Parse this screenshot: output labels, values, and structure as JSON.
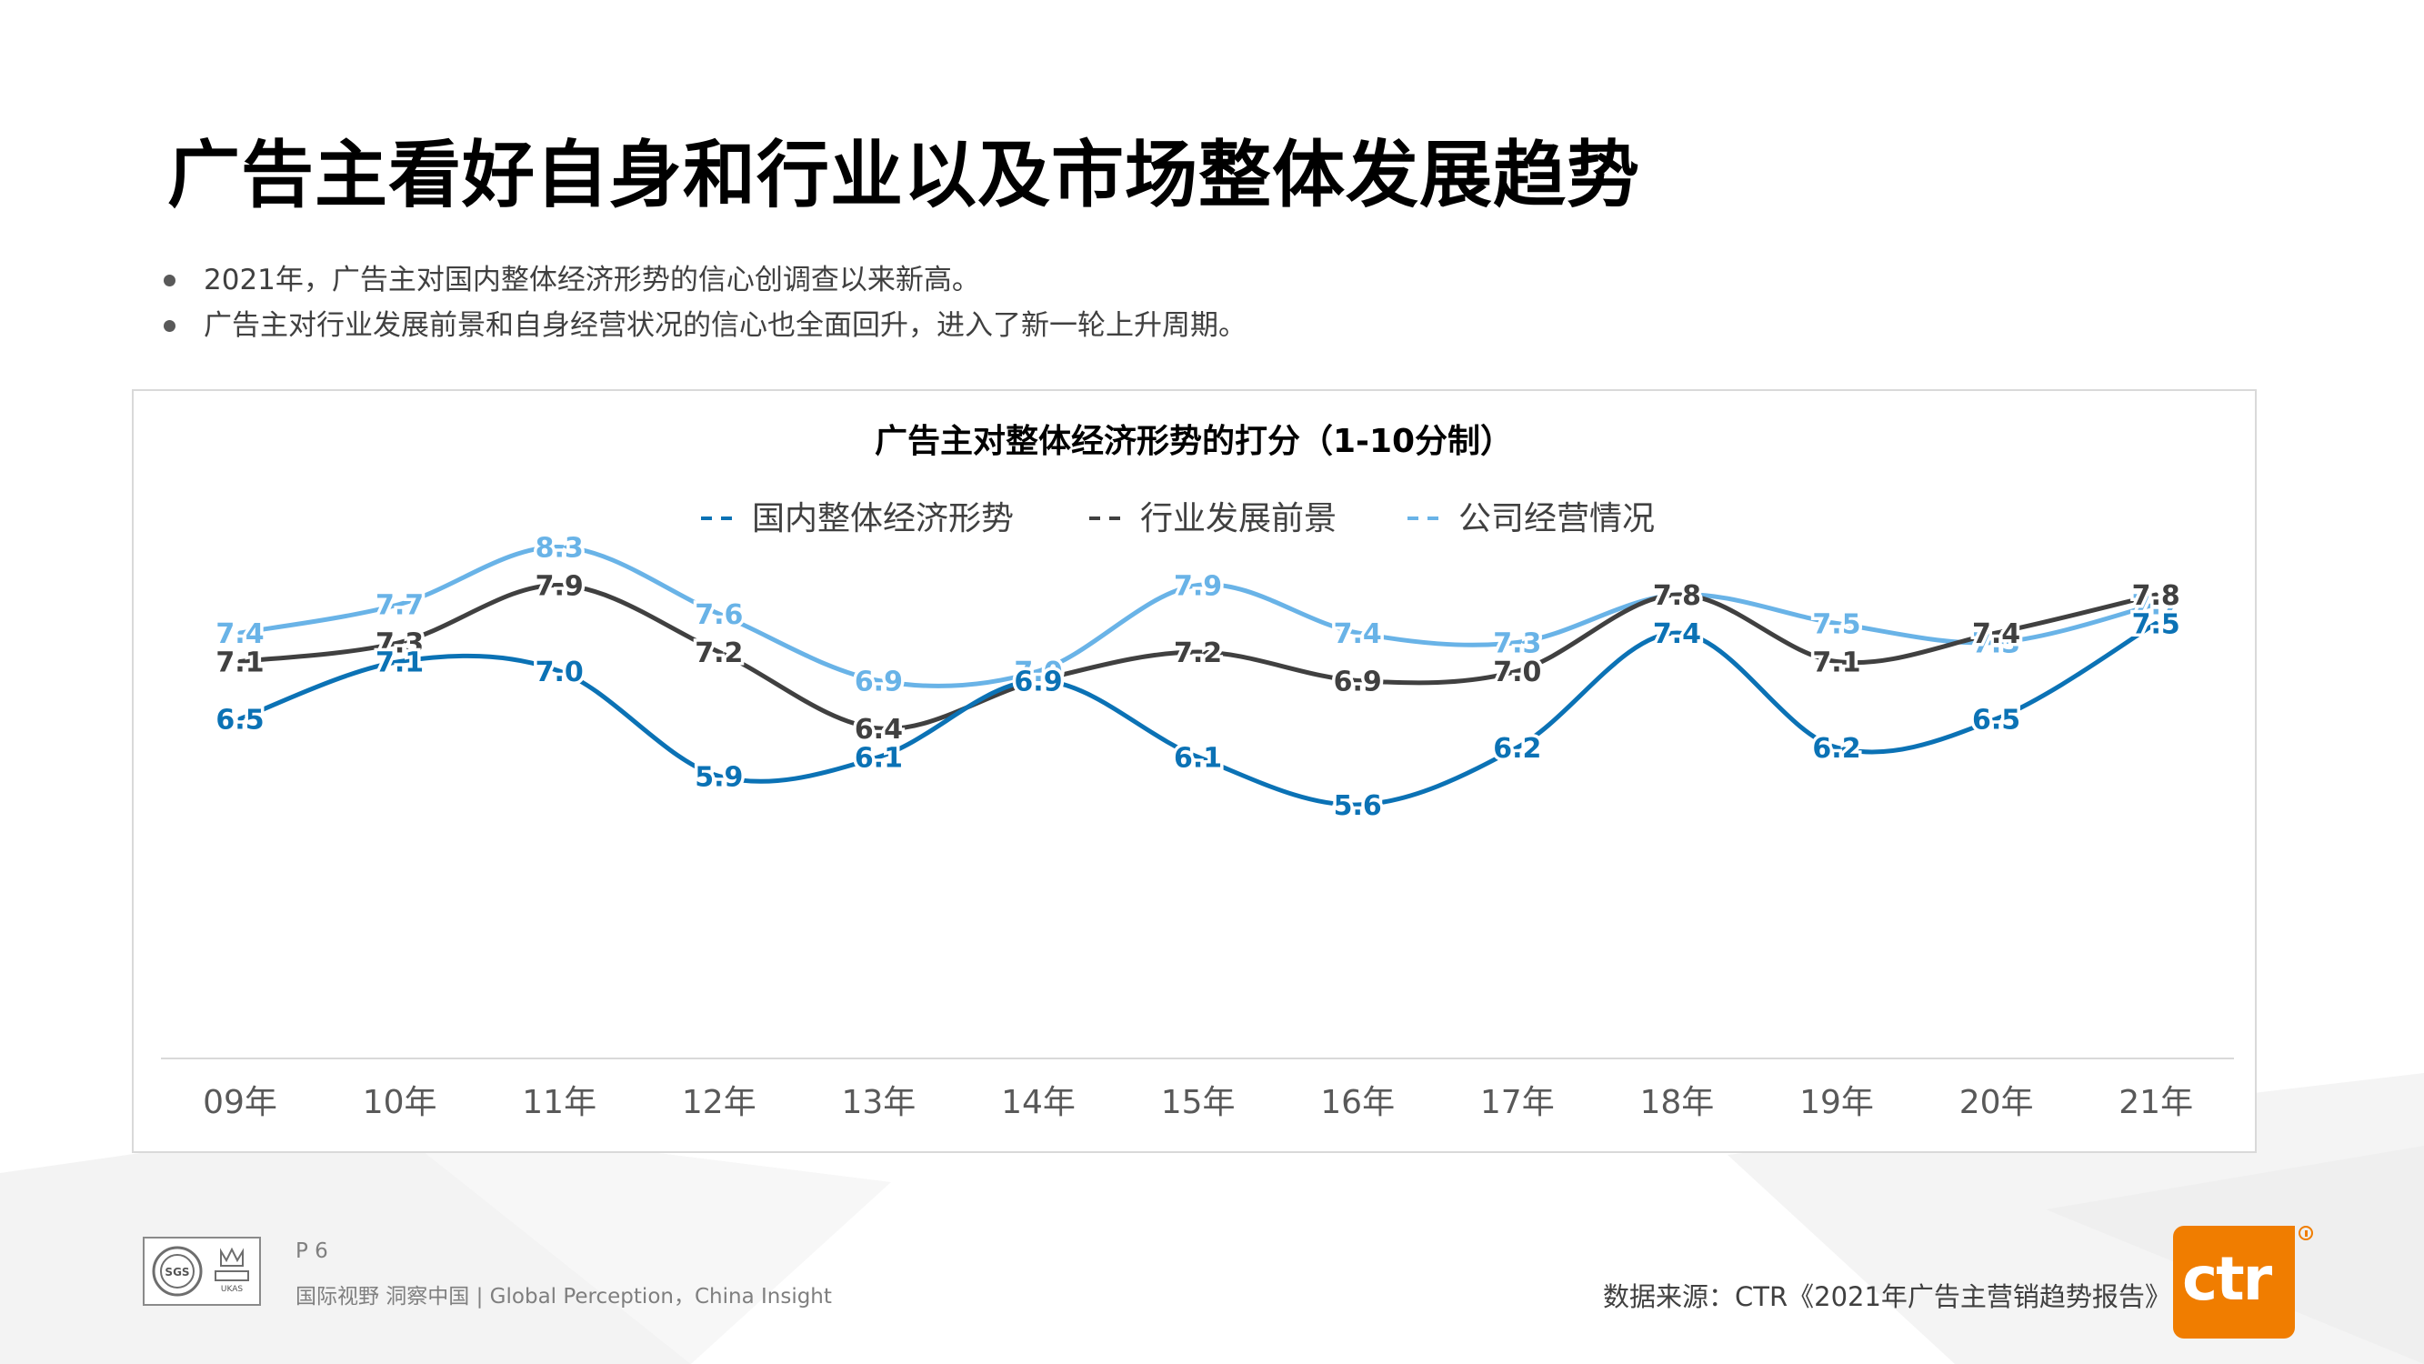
{
  "title": "广告主看好自身和行业以及市场整体发展趋势",
  "bullets": [
    "2021年，广告主对国内整体经济形势的信心创调查以来新高。",
    "广告主对行业发展前景和自身经营状况的信心也全面回升，进入了新一轮上升周期。"
  ],
  "footer": {
    "page": "P 6",
    "tagline": "国际视野  洞察中国 |  Global Perception，China Insight",
    "source": "数据来源：CTR《2021年广告主营销趋势报告》",
    "logo_text": "ctr",
    "badge_text": "SGS",
    "badge_cert_text": "UKAS"
  },
  "colors": {
    "series_1": "#0b72b5",
    "series_2": "#404040",
    "series_3": "#69b3e7",
    "logo": "#f07d00"
  },
  "chart_data": {
    "type": "line",
    "title": "广告主对整体经济形势的打分（1-10分制）",
    "categories": [
      "09年",
      "10年",
      "11年",
      "12年",
      "13年",
      "14年",
      "15年",
      "16年",
      "17年",
      "18年",
      "19年",
      "20年",
      "21年"
    ],
    "series": [
      {
        "name": "国内整体经济形势",
        "color": "#0b72b5",
        "values": [
          6.5,
          7.1,
          7.0,
          5.9,
          6.1,
          6.9,
          6.1,
          5.6,
          6.2,
          7.4,
          6.2,
          6.5,
          7.5
        ]
      },
      {
        "name": "行业发展前景",
        "color": "#404040",
        "values": [
          7.1,
          7.3,
          7.9,
          7.2,
          6.4,
          6.9,
          7.2,
          6.9,
          7.0,
          7.8,
          7.1,
          7.4,
          7.8
        ]
      },
      {
        "name": "公司经营情况",
        "color": "#69b3e7",
        "values": [
          7.4,
          7.7,
          8.3,
          7.6,
          6.9,
          7.0,
          7.9,
          7.4,
          7.3,
          7.8,
          7.5,
          7.3,
          7.7
        ]
      }
    ],
    "legend_position": "top-center",
    "grid": false,
    "smooth": true,
    "data_labels": true
  }
}
